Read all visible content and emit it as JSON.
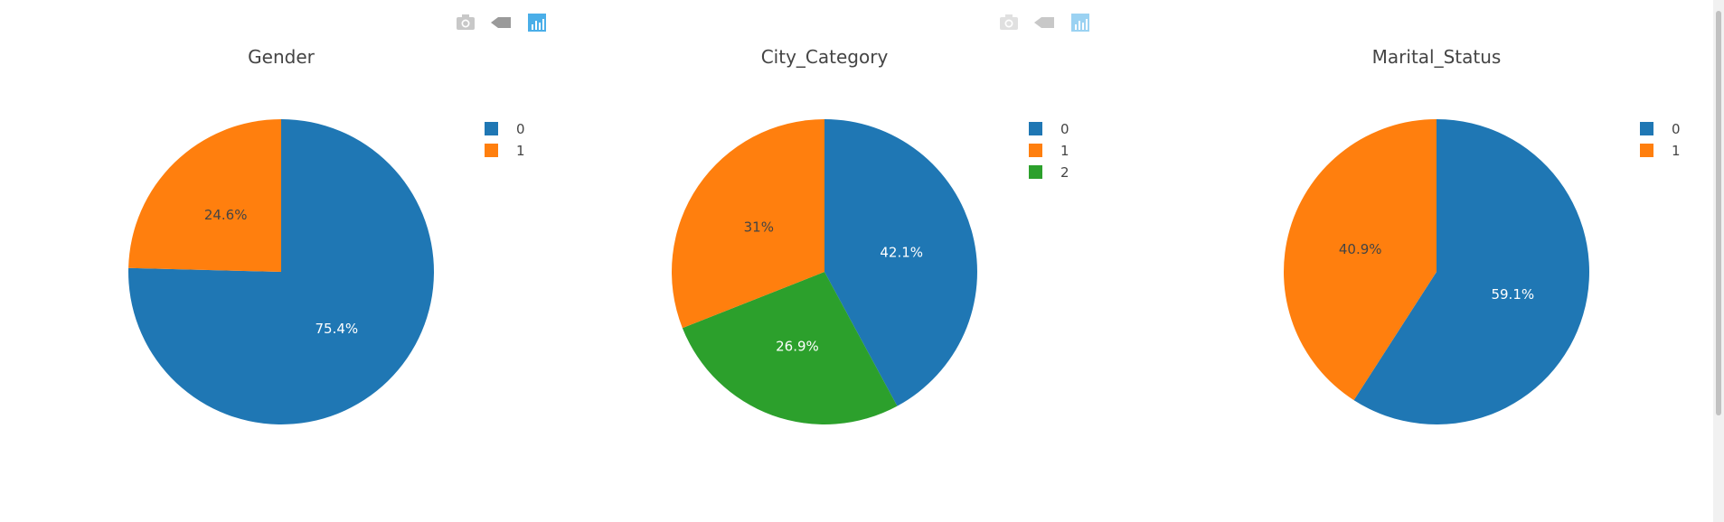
{
  "colors": {
    "series": [
      "#1f77b4",
      "#ff7f0e",
      "#2ca02c"
    ],
    "title_text": "#444444",
    "modebar_inactive": "#c8c8c8",
    "modebar_active": "#4aaee8"
  },
  "modebar": {
    "icons": [
      "camera-icon",
      "tag-icon",
      "bar-chart-icon"
    ]
  },
  "chart_data": [
    {
      "type": "pie",
      "title": "Gender",
      "labels": [
        "0",
        "1"
      ],
      "values": [
        75.4,
        24.6
      ],
      "text_labels": [
        "75.4%",
        "24.6%"
      ],
      "legend_position": "right"
    },
    {
      "type": "pie",
      "title": "City_Category",
      "labels": [
        "0",
        "1",
        "2"
      ],
      "values": [
        42.1,
        31,
        26.9
      ],
      "text_labels": [
        "42.1%",
        "31%",
        "26.9%"
      ],
      "slice_order": [
        "0",
        "2",
        "1"
      ],
      "legend_position": "right"
    },
    {
      "type": "pie",
      "title": "Marital_Status",
      "labels": [
        "0",
        "1"
      ],
      "values": [
        59.1,
        40.9
      ],
      "text_labels": [
        "59.1%",
        "40.9%"
      ],
      "legend_position": "right"
    }
  ]
}
